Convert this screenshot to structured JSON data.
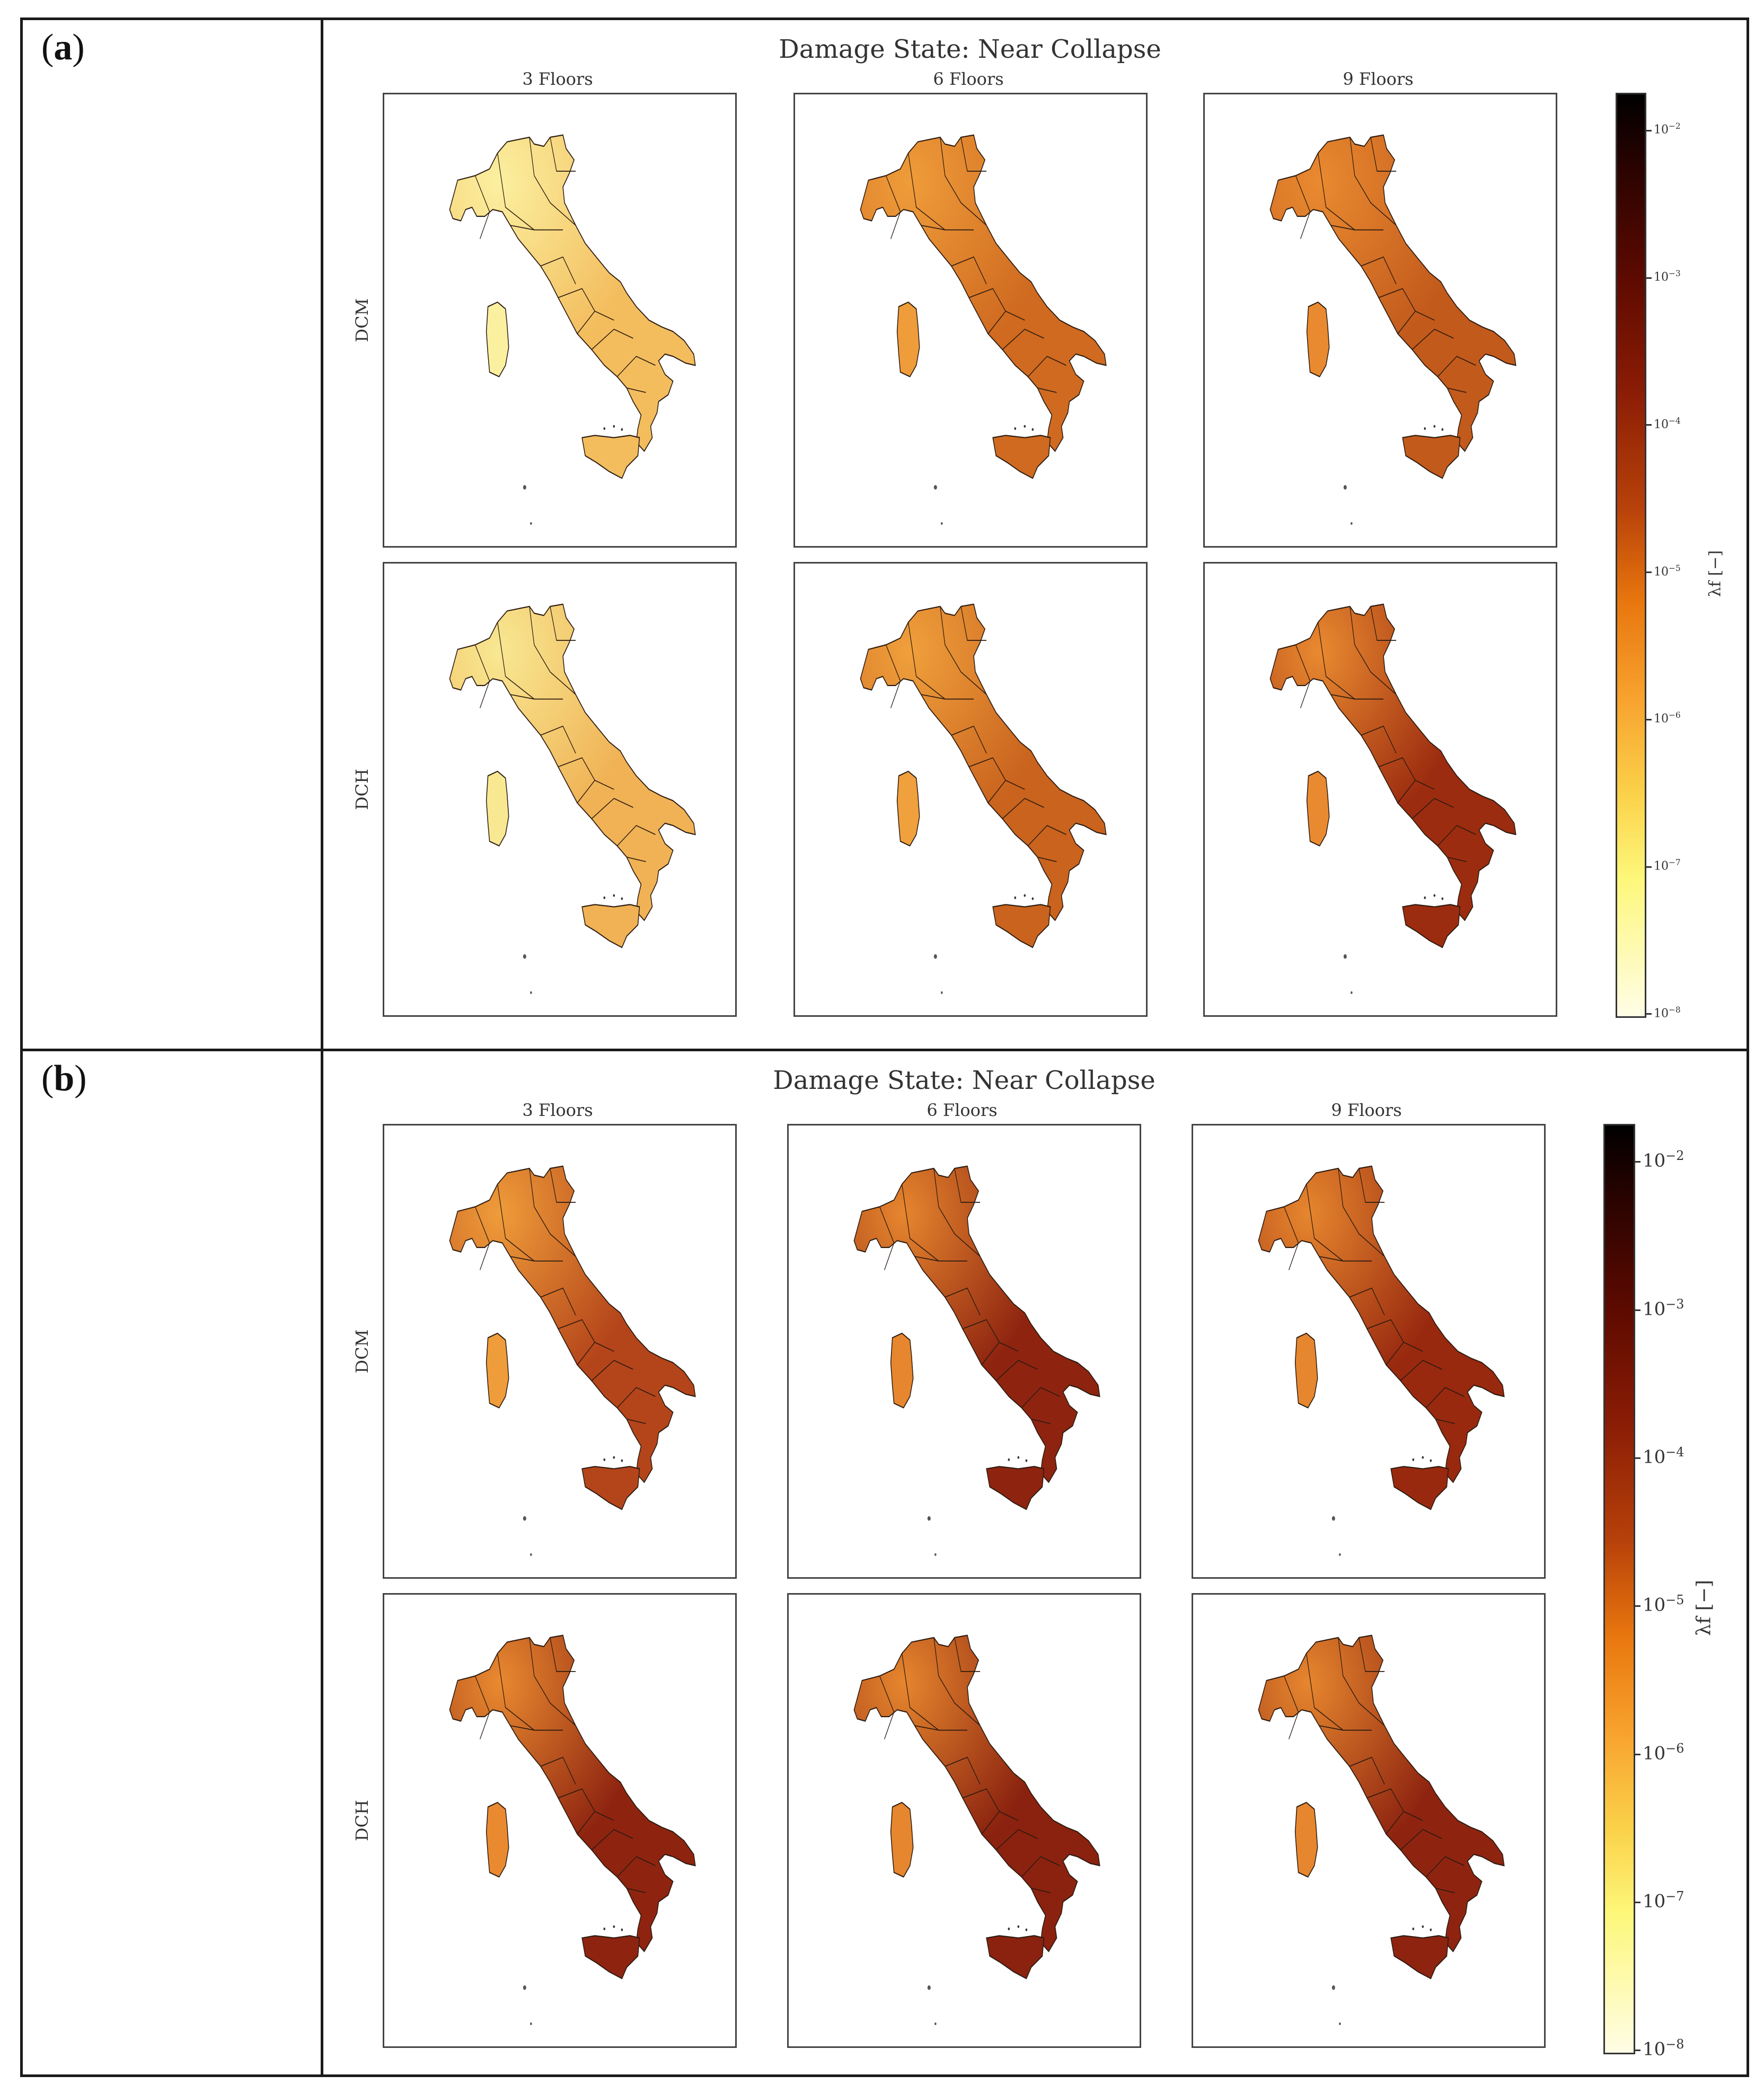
{
  "panels": [
    {
      "label": "a",
      "title": "Damage State: Near Collapse",
      "columns": [
        "3 Floors",
        "6 Floors",
        "9 Floors"
      ],
      "rows": [
        "DCM",
        "DCH"
      ],
      "shades": [
        [
          "#f3bd5e",
          "#cf6a20",
          "#c25a1c"
        ],
        [
          "#f0b255",
          "#c9631e",
          "#9c2c0f"
        ]
      ],
      "islandShades": [
        [
          "#fbf0a0",
          "#ef9c3a",
          "#e98a30"
        ],
        [
          "#f8e892",
          "#f0a03c",
          "#e98a30"
        ]
      ],
      "colorbar": {
        "label": "λf [−]",
        "ticks": [
          {
            "base": "10",
            "exp": "−2"
          },
          {
            "base": "10",
            "exp": "−3"
          },
          {
            "base": "10",
            "exp": "−4"
          },
          {
            "base": "10",
            "exp": "−5"
          },
          {
            "base": "10",
            "exp": "−6"
          },
          {
            "base": "10",
            "exp": "−7"
          },
          {
            "base": "10",
            "exp": "−8"
          }
        ]
      }
    },
    {
      "label": "b",
      "title": "Damage State: Near Collapse",
      "columns": [
        "3 Floors",
        "6 Floors",
        "9 Floors"
      ],
      "rows": [
        "DCM",
        "DCH"
      ],
      "shades": [
        [
          "#b4451a",
          "#8e2410",
          "#98290f"
        ],
        [
          "#8e2410",
          "#8a220f",
          "#8e2410"
        ]
      ],
      "islandShades": [
        [
          "#ef9c3a",
          "#e6862e",
          "#e6862e"
        ],
        [
          "#e98a30",
          "#e6862e",
          "#e6862e"
        ]
      ],
      "colorbar": {
        "label": "λf [−]",
        "ticks": [
          {
            "base": "10",
            "exp": "−2"
          },
          {
            "base": "10",
            "exp": "−3"
          },
          {
            "base": "10",
            "exp": "−4"
          },
          {
            "base": "10",
            "exp": "−5"
          },
          {
            "base": "10",
            "exp": "−6"
          },
          {
            "base": "10",
            "exp": "−7"
          },
          {
            "base": "10",
            "exp": "−8"
          }
        ]
      }
    }
  ]
}
